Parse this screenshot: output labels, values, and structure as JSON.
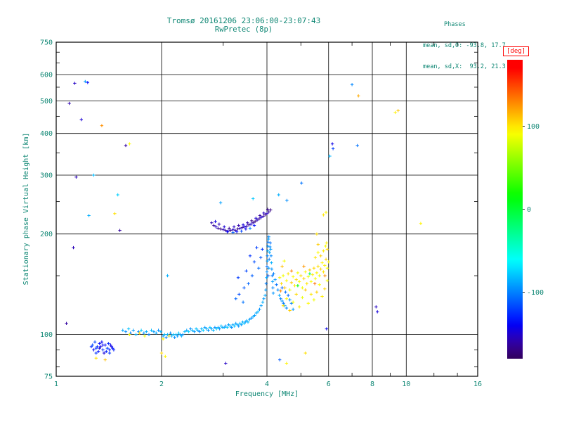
{
  "title": "Tromsø 20161206 23:06:00-23:07:43",
  "subtitle": "RwPretec (8p)",
  "stats": {
    "header": "Phases",
    "line_o": "mean, sd,O: -93.8, 17.7",
    "line_x": "mean, sd,X:  93.2, 21.3"
  },
  "colors": {
    "text": "#0d8673",
    "axis": "#000000",
    "unit_box": "#ff0000"
  },
  "chart_data": {
    "type": "scatter",
    "title": "Tromsø 20161206 23:06:00-23:07:43",
    "subtitle": "RwPretec (8p)",
    "xlabel": "Frequency [MHz]",
    "ylabel": "Stationary phase Virtual Height [km]",
    "x_scale": "log",
    "y_scale": "log",
    "xlim": [
      1,
      16
    ],
    "ylim": [
      75,
      750
    ],
    "x_ticks": [
      1,
      2,
      4,
      6,
      8,
      10,
      16
    ],
    "x_minor_ticks": [
      3,
      5,
      7,
      9,
      12,
      14
    ],
    "y_ticks": [
      75,
      100,
      200,
      300,
      400,
      500,
      600,
      750
    ],
    "y_minor_ticks": [
      80,
      90,
      150,
      250,
      350,
      450,
      550,
      650,
      700
    ],
    "grid": true,
    "colorbar": {
      "label": "[deg]",
      "min": -180,
      "max": 180,
      "ticks": [
        100,
        0,
        -100
      ]
    },
    "point_value_name": "phase_deg",
    "points": [
      [
        1.55,
        103,
        -88
      ],
      [
        1.58,
        102,
        -96
      ],
      [
        1.61,
        104,
        -80
      ],
      [
        1.63,
        101,
        -102
      ],
      [
        1.66,
        103,
        -90
      ],
      [
        1.69,
        100,
        -84
      ],
      [
        1.72,
        102,
        -98
      ],
      [
        1.75,
        103,
        -78
      ],
      [
        1.78,
        101,
        -94
      ],
      [
        1.81,
        102,
        -86
      ],
      [
        1.84,
        100,
        -100
      ],
      [
        1.87,
        103,
        -82
      ],
      [
        1.9,
        102,
        -92
      ],
      [
        1.93,
        101,
        -88
      ],
      [
        1.96,
        103,
        -96
      ],
      [
        1.99,
        102,
        -84
      ],
      [
        1.62,
        100,
        95
      ],
      [
        1.73,
        101,
        105
      ],
      [
        1.79,
        99,
        88
      ],
      [
        2.02,
        99,
        -90
      ],
      [
        2.04,
        100,
        -82
      ],
      [
        2.06,
        98,
        -98
      ],
      [
        2.08,
        100,
        -86
      ],
      [
        2.1,
        99,
        -76
      ],
      [
        2.12,
        101,
        -94
      ],
      [
        2.14,
        99,
        -88
      ],
      [
        2.16,
        100,
        -80
      ],
      [
        2.18,
        98,
        -96
      ],
      [
        2.2,
        100,
        -84
      ],
      [
        2.22,
        99,
        -92
      ],
      [
        2.24,
        101,
        -78
      ],
      [
        2.26,
        100,
        -90
      ],
      [
        2.28,
        99,
        -86
      ],
      [
        2.3,
        100,
        -94
      ],
      [
        2.33,
        102,
        -82
      ],
      [
        2.36,
        103,
        -90
      ],
      [
        2.39,
        102,
        -76
      ],
      [
        2.42,
        104,
        -96
      ],
      [
        2.45,
        103,
        -84
      ],
      [
        2.48,
        102,
        -92
      ],
      [
        2.51,
        104,
        -80
      ],
      [
        2.54,
        103,
        -88
      ],
      [
        2.57,
        102,
        -98
      ],
      [
        2.6,
        104,
        -84
      ],
      [
        2.63,
        103,
        -76
      ],
      [
        2.66,
        105,
        -92
      ],
      [
        2.69,
        104,
        -86
      ],
      [
        2.72,
        103,
        -94
      ],
      [
        2.75,
        105,
        -80
      ],
      [
        2.78,
        104,
        -90
      ],
      [
        2.81,
        103,
        -84
      ],
      [
        2.84,
        105,
        -96
      ],
      [
        2.87,
        104,
        -78
      ],
      [
        2.9,
        105,
        -88
      ],
      [
        2.93,
        104,
        -92
      ],
      [
        2.96,
        106,
        -82
      ],
      [
        2.99,
        105,
        -90
      ],
      [
        3.02,
        105,
        -86
      ],
      [
        3.05,
        106,
        -94
      ],
      [
        3.08,
        105,
        -78
      ],
      [
        3.11,
        107,
        -90
      ],
      [
        3.14,
        106,
        -84
      ],
      [
        3.17,
        105,
        -96
      ],
      [
        3.2,
        107,
        -88
      ],
      [
        3.23,
        106,
        -80
      ],
      [
        3.26,
        108,
        -92
      ],
      [
        3.29,
        107,
        -86
      ],
      [
        3.32,
        106,
        -94
      ],
      [
        3.35,
        108,
        -82
      ],
      [
        3.38,
        107,
        -90
      ],
      [
        3.41,
        109,
        -86
      ],
      [
        3.44,
        108,
        -78
      ],
      [
        3.47,
        109,
        -92
      ],
      [
        3.5,
        110,
        -88
      ],
      [
        3.53,
        109,
        -84
      ],
      [
        3.57,
        111,
        -90
      ],
      [
        3.61,
        112,
        -96
      ],
      [
        3.65,
        113,
        -86
      ],
      [
        3.69,
        114,
        -92
      ],
      [
        3.73,
        116,
        -88
      ],
      [
        3.77,
        117,
        -84
      ],
      [
        3.81,
        119,
        -94
      ],
      [
        3.85,
        122,
        -90
      ],
      [
        3.89,
        125,
        -86
      ],
      [
        3.92,
        128,
        -92
      ],
      [
        3.95,
        131,
        -88
      ],
      [
        3.26,
        128,
        -108
      ],
      [
        3.33,
        132,
        -116
      ],
      [
        3.31,
        148,
        -122
      ],
      [
        3.42,
        125,
        -104
      ],
      [
        3.44,
        138,
        -112
      ],
      [
        3.49,
        155,
        -118
      ],
      [
        3.54,
        142,
        -108
      ],
      [
        3.58,
        172,
        -124
      ],
      [
        3.63,
        150,
        -110
      ],
      [
        3.68,
        165,
        -116
      ],
      [
        3.74,
        182,
        -120
      ],
      [
        3.79,
        158,
        -106
      ],
      [
        3.84,
        170,
        -114
      ],
      [
        3.88,
        180,
        -122
      ],
      [
        3.97,
        136,
        -92
      ],
      [
        3.98,
        142,
        -100
      ],
      [
        3.99,
        148,
        -88
      ],
      [
        4.0,
        154,
        -96
      ],
      [
        4.0,
        160,
        -104
      ],
      [
        4.01,
        166,
        -90
      ],
      [
        4.01,
        172,
        -98
      ],
      [
        4.02,
        178,
        -86
      ],
      [
        4.02,
        184,
        -94
      ],
      [
        4.03,
        189,
        -102
      ],
      [
        4.04,
        193,
        -90
      ],
      [
        4.05,
        196,
        -96
      ],
      [
        4.03,
        150,
        -108
      ],
      [
        4.05,
        158,
        -92
      ],
      [
        4.06,
        168,
        -100
      ],
      [
        4.07,
        176,
        -88
      ],
      [
        4.08,
        183,
        -96
      ],
      [
        4.09,
        188,
        -104
      ],
      [
        4.1,
        180,
        -92
      ],
      [
        4.11,
        172,
        -98
      ],
      [
        4.12,
        164,
        -86
      ],
      [
        4.13,
        157,
        -94
      ],
      [
        4.14,
        150,
        -102
      ],
      [
        4.15,
        144,
        -90
      ],
      [
        4.16,
        138,
        -98
      ],
      [
        4.17,
        133,
        -94
      ],
      [
        4.18,
        152,
        -100
      ],
      [
        4.22,
        146,
        -92
      ],
      [
        4.26,
        141,
        -104
      ],
      [
        4.3,
        136,
        -96
      ],
      [
        4.34,
        131,
        -88
      ],
      [
        4.38,
        128,
        -100
      ],
      [
        4.42,
        126,
        -94
      ],
      [
        4.46,
        124,
        -102
      ],
      [
        4.5,
        122,
        -90
      ],
      [
        4.55,
        120,
        -98
      ],
      [
        4.6,
        131,
        -106
      ],
      [
        4.65,
        127,
        -94
      ],
      [
        4.7,
        124,
        -100
      ],
      [
        4.75,
        119,
        -92
      ],
      [
        4.42,
        138,
        -110
      ],
      [
        4.52,
        134,
        -104
      ],
      [
        4.35,
        148,
        96
      ],
      [
        4.4,
        142,
        104
      ],
      [
        4.45,
        150,
        88
      ],
      [
        4.5,
        138,
        110
      ],
      [
        4.55,
        145,
        94
      ],
      [
        4.6,
        152,
        100
      ],
      [
        4.65,
        136,
        86
      ],
      [
        4.7,
        143,
        108
      ],
      [
        4.75,
        149,
        92
      ],
      [
        4.8,
        140,
        98
      ],
      [
        4.85,
        146,
        104
      ],
      [
        4.9,
        153,
        90
      ],
      [
        4.95,
        144,
        96
      ],
      [
        5.0,
        150,
        102
      ],
      [
        5.05,
        138,
        88
      ],
      [
        5.1,
        147,
        106
      ],
      [
        5.15,
        154,
        94
      ],
      [
        5.2,
        142,
        100
      ],
      [
        5.25,
        149,
        86
      ],
      [
        5.3,
        156,
        108
      ],
      [
        5.35,
        144,
        92
      ],
      [
        5.4,
        151,
        98
      ],
      [
        5.45,
        158,
        104
      ],
      [
        5.5,
        147,
        90
      ],
      [
        5.55,
        153,
        96
      ],
      [
        5.6,
        160,
        102
      ],
      [
        5.65,
        150,
        88
      ],
      [
        5.7,
        157,
        106
      ],
      [
        5.75,
        164,
        94
      ],
      [
        5.8,
        154,
        100
      ],
      [
        5.85,
        161,
        96
      ],
      [
        5.9,
        168,
        104
      ],
      [
        5.95,
        158,
        92
      ],
      [
        6.0,
        165,
        98
      ],
      [
        4.45,
        122,
        102
      ],
      [
        4.55,
        128,
        96
      ],
      [
        4.65,
        118,
        108
      ],
      [
        4.75,
        125,
        90
      ],
      [
        4.85,
        132,
        104
      ],
      [
        4.95,
        121,
        98
      ],
      [
        5.05,
        129,
        86
      ],
      [
        5.15,
        136,
        110
      ],
      [
        5.25,
        124,
        94
      ],
      [
        5.35,
        132,
        100
      ],
      [
        5.45,
        127,
        88
      ],
      [
        5.55,
        134,
        106
      ],
      [
        5.65,
        141,
        92
      ],
      [
        5.75,
        130,
        98
      ],
      [
        5.85,
        137,
        104
      ],
      [
        5.95,
        145,
        90
      ],
      [
        5.5,
        170,
        100
      ],
      [
        5.6,
        176,
        94
      ],
      [
        5.7,
        172,
        106
      ],
      [
        5.8,
        178,
        98
      ],
      [
        5.88,
        184,
        92
      ],
      [
        5.95,
        180,
        104
      ],
      [
        5.92,
        188,
        96
      ],
      [
        5.6,
        186,
        108
      ],
      [
        5.8,
        228,
        100
      ],
      [
        5.9,
        232,
        95
      ],
      [
        4.42,
        160,
        112
      ],
      [
        4.48,
        166,
        90
      ],
      [
        5.55,
        200,
        102
      ],
      [
        4.38,
        135,
        128
      ],
      [
        4.7,
        155,
        132
      ],
      [
        5.1,
        160,
        124
      ],
      [
        5.48,
        142,
        136
      ],
      [
        5.86,
        150,
        128
      ],
      [
        2.78,
        216,
        -158
      ],
      [
        2.82,
        212,
        -166
      ],
      [
        2.86,
        210,
        -150
      ],
      [
        2.9,
        208,
        -162
      ],
      [
        2.95,
        207,
        -172
      ],
      [
        3.0,
        206,
        -156
      ],
      [
        3.05,
        205,
        -164
      ],
      [
        3.1,
        204,
        -148
      ],
      [
        3.15,
        205,
        -168
      ],
      [
        3.2,
        206,
        -154
      ],
      [
        3.25,
        205,
        -160
      ],
      [
        3.3,
        207,
        -170
      ],
      [
        3.35,
        208,
        -152
      ],
      [
        3.4,
        209,
        -164
      ],
      [
        3.45,
        210,
        -146
      ],
      [
        3.5,
        211,
        -158
      ],
      [
        3.55,
        213,
        -166
      ],
      [
        3.6,
        214,
        -150
      ],
      [
        3.65,
        216,
        -162
      ],
      [
        3.7,
        218,
        -172
      ],
      [
        3.75,
        220,
        -156
      ],
      [
        3.8,
        222,
        -164
      ],
      [
        3.85,
        224,
        -148
      ],
      [
        3.9,
        226,
        -160
      ],
      [
        3.95,
        228,
        -168
      ],
      [
        4.0,
        230,
        -154
      ],
      [
        4.05,
        233,
        -162
      ],
      [
        4.1,
        236,
        -170
      ],
      [
        2.85,
        218,
        -144
      ],
      [
        2.92,
        214,
        -156
      ],
      [
        3.02,
        210,
        -148
      ],
      [
        3.12,
        208,
        -166
      ],
      [
        3.22,
        210,
        -152
      ],
      [
        3.32,
        212,
        -160
      ],
      [
        3.42,
        213,
        -146
      ],
      [
        3.52,
        216,
        -158
      ],
      [
        3.62,
        219,
        -168
      ],
      [
        3.72,
        223,
        -150
      ],
      [
        3.82,
        227,
        -162
      ],
      [
        3.92,
        231,
        -154
      ],
      [
        4.02,
        237,
        -166
      ],
      [
        3.08,
        203,
        -140
      ],
      [
        3.28,
        203,
        -136
      ],
      [
        3.48,
        207,
        -142
      ],
      [
        3.68,
        212,
        -134
      ],
      [
        3.2,
        202,
        -110
      ],
      [
        3.58,
        208,
        -100
      ],
      [
        3.38,
        204,
        -118
      ],
      [
        3.65,
        255,
        -78
      ],
      [
        4.32,
        262,
        -86
      ],
      [
        4.56,
        252,
        -96
      ],
      [
        5.02,
        284,
        -104
      ],
      [
        1.5,
        262,
        -76
      ],
      [
        1.28,
        300,
        -82
      ],
      [
        6.05,
        342,
        -84
      ],
      [
        2.95,
        248,
        -90
      ],
      [
        1.26,
        92,
        -128
      ],
      [
        1.28,
        90,
        -140
      ],
      [
        1.3,
        91,
        -122
      ],
      [
        1.32,
        89,
        -134
      ],
      [
        1.34,
        92,
        -146
      ],
      [
        1.36,
        90,
        -126
      ],
      [
        1.38,
        93,
        -138
      ],
      [
        1.4,
        91,
        -120
      ],
      [
        1.42,
        90,
        -132
      ],
      [
        1.44,
        92,
        -144
      ],
      [
        1.3,
        88,
        -124
      ],
      [
        1.33,
        94,
        -136
      ],
      [
        1.37,
        88,
        -148
      ],
      [
        1.41,
        94,
        -128
      ],
      [
        1.27,
        93,
        -116
      ],
      [
        1.35,
        95,
        -140
      ],
      [
        1.39,
        89,
        -130
      ],
      [
        1.43,
        93,
        -142
      ],
      [
        1.29,
        95,
        -118
      ],
      [
        1.45,
        91,
        -134
      ],
      [
        1.31,
        92,
        -126
      ],
      [
        1.36,
        93,
        -138
      ],
      [
        1.42,
        88,
        -122
      ],
      [
        1.46,
        90,
        -130
      ],
      [
        1.33,
        91,
        -144
      ],
      [
        1.3,
        85,
        102
      ],
      [
        1.38,
        84,
        112
      ],
      [
        2.0,
        88,
        104
      ],
      [
        2.05,
        86,
        94
      ],
      [
        2.02,
        97,
        96
      ],
      [
        2.1,
        99,
        106
      ],
      [
        1.13,
        565,
        -152
      ],
      [
        1.21,
        572,
        -92
      ],
      [
        1.23,
        568,
        -136
      ],
      [
        7.0,
        560,
        -98
      ],
      [
        7.3,
        518,
        118
      ],
      [
        1.09,
        492,
        -158
      ],
      [
        9.3,
        462,
        96
      ],
      [
        9.48,
        468,
        110
      ],
      [
        1.62,
        372,
        92
      ],
      [
        1.58,
        368,
        -162
      ],
      [
        6.15,
        372,
        -144
      ],
      [
        7.25,
        368,
        -104
      ],
      [
        1.14,
        296,
        -156
      ],
      [
        11.0,
        215,
        96
      ],
      [
        1.47,
        230,
        102
      ],
      [
        1.24,
        227,
        -86
      ],
      [
        1.52,
        205,
        -162
      ],
      [
        2.08,
        150,
        -86
      ],
      [
        8.2,
        121,
        -152
      ],
      [
        8.27,
        117,
        -146
      ],
      [
        5.92,
        104,
        -142
      ],
      [
        4.35,
        84,
        -112
      ],
      [
        4.55,
        82,
        96
      ],
      [
        5.15,
        88,
        102
      ],
      [
        3.05,
        82,
        -152
      ],
      [
        1.07,
        108,
        -162
      ],
      [
        1.12,
        182,
        -156
      ],
      [
        5.3,
        152,
        -12
      ],
      [
        4.9,
        140,
        16
      ],
      [
        6.18,
        360,
        -120
      ],
      [
        1.18,
        440,
        -148
      ],
      [
        1.35,
        422,
        126
      ]
    ]
  }
}
